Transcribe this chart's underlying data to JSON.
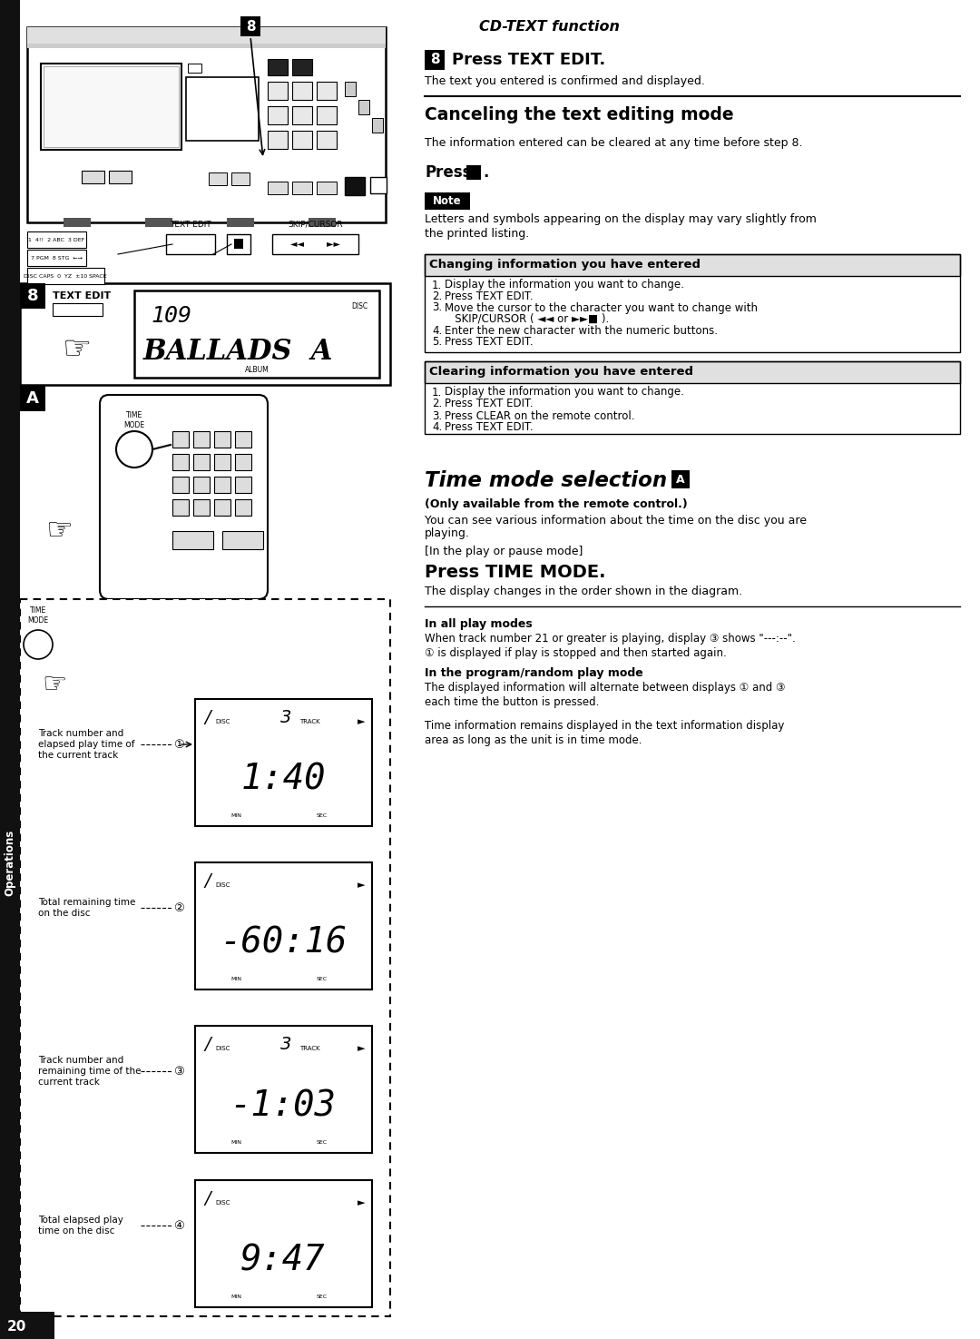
{
  "page_number": "20",
  "bg_color": "#ffffff",
  "cd_text_function_title": "CD-TEXT function",
  "step8_heading": "Press TEXT EDIT.",
  "step8_subtext": "The text you entered is confirmed and displayed.",
  "cancel_heading": "Canceling the text editing mode",
  "cancel_para": "The information entered can be cleared at any time before step 8.",
  "note_label": "Note",
  "note_text1": "Letters and symbols appearing on the display may vary slightly from",
  "note_text2": "the printed listing.",
  "changing_box_title": "Changing information you have entered",
  "changing_steps": [
    "Display the information you want to change.",
    "Press TEXT EDIT.",
    "Move the cursor to the character you want to change with",
    "SKIP/CURSOR (◄◄ or ►►■).",
    "Enter the new character with the numeric buttons.",
    "Press TEXT EDIT."
  ],
  "clearing_box_title": "Clearing information you have entered",
  "clearing_steps": [
    "Display the information you want to change.",
    "Press TEXT EDIT.",
    "Press CLEAR on the remote control.",
    "Press TEXT EDIT."
  ],
  "time_mode_title": "Time mode selection",
  "time_mode_badge": "A",
  "time_mode_note1_bold": "(Only available from the remote control.)",
  "time_mode_note1": "You can see various information about the time on the disc you are",
  "time_mode_note1b": "playing.",
  "time_mode_note2_bracket": "[In the play or pause mode]",
  "time_mode_press": "Press TIME MODE.",
  "time_mode_display": "The display changes in the order shown in the diagram.",
  "all_play_bold": "In all play modes",
  "all_play_line1": "When track number 21 or greater is playing, display ③ shows \"---:--\".",
  "all_play_line2": "① is displayed if play is stopped and then started again.",
  "program_bold": "In the program/random play mode",
  "program_line1": "The displayed information will alternate between displays ① and ③",
  "program_line2": "each time the button is pressed.",
  "time_info_line1": "Time information remains displayed in the text information display",
  "time_info_line2": "area as long as the unit is in time mode.",
  "display_labels": [
    "Track number and\nelapsed play time of\nthe current track",
    "Total remaining time\non the disc",
    "Track number and\nremaining time of the\ncurrent track",
    "Total elapsed play\ntime on the disc"
  ],
  "display_times": [
    "1:40",
    "-60:16",
    "-1:03",
    "9:47"
  ],
  "display_has_track": [
    true,
    false,
    true,
    false
  ],
  "display_circles": [
    "①",
    "②",
    "③",
    "④"
  ]
}
